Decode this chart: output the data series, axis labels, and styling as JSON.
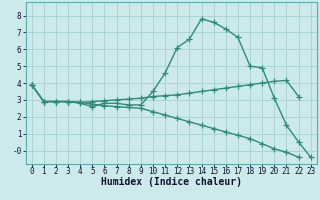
{
  "xlabel": "Humidex (Indice chaleur)",
  "line1_x": [
    0,
    1,
    2,
    3,
    4,
    5,
    6,
    7,
    8,
    9,
    10,
    11,
    12,
    13,
    14,
    15,
    16,
    17,
    18,
    19,
    20,
    21,
    22,
    23
  ],
  "line1_y": [
    3.9,
    2.9,
    2.9,
    2.9,
    2.8,
    2.6,
    2.8,
    2.8,
    2.7,
    2.7,
    3.5,
    4.6,
    6.1,
    6.6,
    7.8,
    7.6,
    7.2,
    6.7,
    5.0,
    4.9,
    3.1,
    1.5,
    0.5,
    -0.4
  ],
  "line2_x": [
    0,
    1,
    2,
    3,
    4,
    5,
    6,
    7,
    8,
    9,
    10,
    11,
    12,
    13,
    14,
    15,
    16,
    17,
    18,
    19,
    20,
    21,
    22,
    23
  ],
  "line2_y": [
    3.9,
    2.9,
    2.9,
    2.9,
    2.85,
    2.9,
    2.95,
    3.0,
    3.05,
    3.1,
    3.2,
    3.25,
    3.3,
    3.4,
    3.5,
    3.6,
    3.7,
    3.8,
    3.9,
    4.0,
    4.1,
    4.15,
    3.2,
    null
  ],
  "line3_x": [
    0,
    1,
    2,
    3,
    4,
    5,
    6,
    7,
    8,
    9,
    10,
    11,
    12,
    13,
    14,
    15,
    16,
    17,
    18,
    19,
    20,
    21,
    22,
    23
  ],
  "line3_y": [
    3.9,
    2.9,
    2.9,
    2.9,
    2.85,
    2.75,
    2.65,
    2.6,
    2.55,
    2.5,
    2.3,
    2.1,
    1.9,
    1.7,
    1.5,
    1.3,
    1.1,
    0.9,
    0.7,
    0.4,
    0.1,
    -0.1,
    -0.4,
    null
  ],
  "color": "#2e8b7a",
  "bg_color": "#cceaea",
  "grid_color": "#add4d4",
  "ylim": [
    -0.8,
    8.8
  ],
  "xlim": [
    -0.5,
    23.5
  ],
  "yticks": [
    0,
    1,
    2,
    3,
    4,
    5,
    6,
    7,
    8
  ],
  "xticks": [
    0,
    1,
    2,
    3,
    4,
    5,
    6,
    7,
    8,
    9,
    10,
    11,
    12,
    13,
    14,
    15,
    16,
    17,
    18,
    19,
    20,
    21,
    22,
    23
  ],
  "tick_label_fontsize": 5.5,
  "xlabel_fontsize": 7.0,
  "linewidth": 1.0,
  "markersize": 2.5
}
